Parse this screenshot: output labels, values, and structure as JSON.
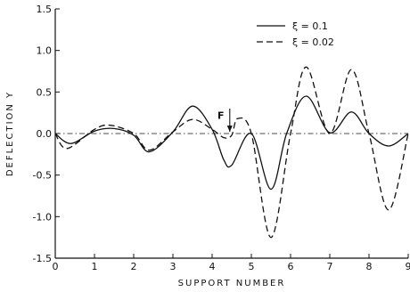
{
  "chart_data": {
    "type": "line",
    "title": "",
    "xlabel": "SUPPORT NUMBER",
    "ylabel": "DEFLECTION Y",
    "xlim": [
      0,
      9
    ],
    "ylim": [
      -1.5,
      1.5
    ],
    "x_ticks": [
      "0",
      "1",
      "2",
      "3",
      "4",
      "5",
      "6",
      "7",
      "8",
      "9"
    ],
    "y_ticks": [
      "1.5",
      "1.0",
      "0.5",
      "0.0",
      "-0.5",
      "-1.0",
      "-1.5"
    ],
    "grid": false,
    "legend": {
      "placement": "top-right"
    },
    "series": [
      {
        "name": "ξ = 0.1",
        "style": "solid",
        "x": [
          0,
          0.4,
          1,
          1.5,
          2,
          2.4,
          3,
          3.5,
          4,
          4.3,
          4.5,
          5,
          5.5,
          5.9,
          6.4,
          7,
          7.55,
          8,
          8.5,
          9
        ],
        "y": [
          0,
          -0.12,
          0.03,
          0.06,
          -0.02,
          -0.22,
          0.02,
          0.33,
          0.05,
          -0.32,
          -0.38,
          0.0,
          -0.67,
          0.0,
          0.45,
          0.01,
          0.26,
          0.0,
          -0.15,
          0.0
        ]
      },
      {
        "name": "ξ = 0.02",
        "style": "dashed",
        "x": [
          0,
          0.3,
          1,
          1.4,
          2,
          2.4,
          3,
          3.5,
          4,
          4.3,
          4.5,
          4.65,
          5,
          5.5,
          6,
          6.4,
          7,
          7.55,
          8,
          8.5,
          9
        ],
        "y": [
          0,
          -0.18,
          0.05,
          0.1,
          0.0,
          -0.2,
          0.02,
          0.17,
          0.05,
          -0.05,
          -0.02,
          0.18,
          0.0,
          -1.25,
          0.0,
          0.8,
          0.0,
          0.77,
          0.0,
          -0.92,
          0.0
        ]
      }
    ],
    "annotations": [
      {
        "text": "F",
        "x": 4.45
      }
    ]
  }
}
